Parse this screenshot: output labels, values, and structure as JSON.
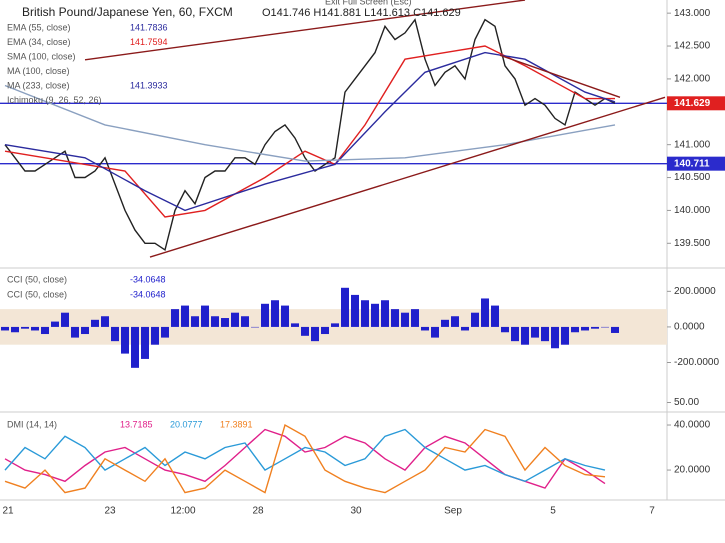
{
  "header": {
    "title": "British Pound/Japanese Yen, 60, FXCM",
    "ohlc": "O141.746 H141.881 L141.613 C141.629",
    "tooltip": "Exit Full Screen (Esc)",
    "indicators": [
      {
        "name": "EMA (55, close)",
        "value": "141.7836",
        "color": "#2b2b9e"
      },
      {
        "name": "EMA (34, close)",
        "value": "141.7594",
        "color": "#e02020"
      },
      {
        "name": "SMA (100, close)",
        "value": "",
        "color": "#999"
      },
      {
        "name": "MA (100, close)",
        "value": "",
        "color": "#999"
      },
      {
        "name": "MA (233, close)",
        "value": "141.3933",
        "color": "#2b2b9e"
      },
      {
        "name": "Ichimoku (9, 26, 52, 26)",
        "value": "",
        "color": "#999"
      }
    ]
  },
  "x_labels": [
    "21",
    "23",
    "12:00",
    "28",
    "30",
    "Sep",
    "5",
    "7"
  ],
  "chart_data": [
    {
      "type": "line",
      "xlim": [
        -0.5,
        66.2
      ],
      "ylim": [
        139.17,
        143.2
      ],
      "yticks": [
        {
          "value": 143.0,
          "label": "143.000"
        },
        {
          "value": 142.5,
          "label": "142.500"
        },
        {
          "value": 142.0,
          "label": "142.000"
        },
        {
          "value": 141.0,
          "label": "141.000"
        },
        {
          "value": 140.5,
          "label": "140.500"
        },
        {
          "value": 140.0,
          "label": "140.000"
        },
        {
          "value": 139.5,
          "label": "139.500"
        }
      ],
      "levels": [
        {
          "value": 141.629,
          "label": "141.629",
          "color": "#e02020"
        },
        {
          "value": 140.711,
          "label": "140.711",
          "color": "#2b2bcc"
        }
      ],
      "series": [
        {
          "color": "#222",
          "x": [
            0,
            1,
            2,
            3,
            4,
            5,
            6,
            7,
            8,
            9,
            10,
            11,
            12,
            13,
            14,
            15,
            16,
            17,
            18,
            19,
            20,
            21,
            22,
            23,
            24,
            25,
            26,
            27,
            28,
            29,
            30,
            31,
            32,
            33,
            34,
            35,
            36,
            37,
            38,
            39,
            40,
            41,
            42,
            43,
            44,
            45,
            46,
            47,
            48,
            49,
            50,
            51,
            52,
            53,
            54,
            55,
            56,
            57,
            58,
            59,
            60,
            61
          ],
          "values": [
            141.0,
            140.8,
            140.6,
            140.6,
            140.7,
            140.8,
            140.9,
            140.5,
            140.5,
            140.6,
            140.8,
            140.4,
            140.0,
            139.7,
            139.5,
            139.5,
            139.4,
            140.0,
            140.3,
            140.1,
            140.5,
            140.6,
            140.6,
            140.8,
            140.8,
            140.7,
            141.0,
            141.2,
            141.3,
            141.1,
            140.8,
            140.6,
            140.7,
            140.8,
            141.8,
            142.0,
            142.2,
            142.4,
            142.8,
            142.6,
            142.7,
            142.9,
            142.3,
            141.9,
            142.1,
            142.2,
            142.0,
            142.6,
            142.9,
            142.8,
            142.2,
            142.0,
            141.6,
            141.7,
            141.6,
            141.4,
            141.3,
            141.8,
            141.7,
            141.6,
            141.7,
            141.63
          ]
        },
        {
          "color": "#e02020",
          "x": [
            0,
            8,
            12,
            16,
            20,
            26,
            30,
            33,
            36,
            40,
            44,
            48,
            52,
            58,
            61
          ],
          "values": [
            140.9,
            140.7,
            140.6,
            139.9,
            140.0,
            140.5,
            140.9,
            140.7,
            141.3,
            142.3,
            142.4,
            142.5,
            142.2,
            141.7,
            141.7
          ]
        },
        {
          "color": "#2b2b9e",
          "x": [
            0,
            8,
            14,
            18,
            26,
            33,
            38,
            42,
            48,
            52,
            58,
            61
          ],
          "values": [
            141.0,
            140.8,
            140.3,
            140.0,
            140.4,
            140.7,
            141.5,
            142.1,
            142.4,
            142.3,
            141.8,
            141.65
          ]
        },
        {
          "color": "#8aa0c0",
          "x": [
            0,
            10,
            20,
            30,
            40,
            50,
            61
          ],
          "values": [
            141.9,
            141.3,
            141.0,
            140.75,
            140.8,
            141.0,
            141.3
          ]
        },
        {
          "color": "#8b1a1a",
          "x": [
            8,
            52
          ],
          "values": [
            142.29,
            143.2
          ]
        },
        {
          "color": "#8b1a1a",
          "x": [
            14.5,
            66
          ],
          "values": [
            139.29,
            141.72
          ]
        },
        {
          "color": "#8b1a1a",
          "x": [
            49.5,
            61.5
          ],
          "values": [
            142.36,
            141.72
          ]
        }
      ]
    },
    {
      "type": "bar",
      "xlim": [
        -0.5,
        66.2
      ],
      "ylim": [
        -394,
        320
      ],
      "color": "#2020cc",
      "legend": [
        {
          "name": "CCI (50, close)",
          "value": "-34.0648"
        },
        {
          "name": "CCI (50, close)",
          "value": "-34.0648"
        }
      ],
      "yticks": [
        {
          "value": 200,
          "label": "200.0000"
        },
        {
          "value": 0,
          "label": "0.0000"
        },
        {
          "value": -200,
          "label": "-200.0000"
        }
      ],
      "band": [
        -100,
        100
      ],
      "values": [
        -20,
        -30,
        -10,
        -20,
        -40,
        30,
        80,
        -60,
        -40,
        40,
        60,
        -80,
        -150,
        -230,
        -180,
        -100,
        -60,
        100,
        120,
        60,
        120,
        60,
        50,
        80,
        60,
        0,
        130,
        150,
        120,
        20,
        -50,
        -80,
        -40,
        20,
        220,
        180,
        150,
        130,
        150,
        100,
        80,
        100,
        -20,
        -60,
        40,
        60,
        -20,
        80,
        160,
        120,
        -30,
        -80,
        -100,
        -60,
        -80,
        -120,
        -100,
        -30,
        -20,
        -10,
        0,
        -34
      ]
    },
    {
      "type": "line",
      "xlim": [
        -0.5,
        66.2
      ],
      "ylim": [
        6.7,
        52
      ],
      "title": "DMI (14, 14)",
      "yticks": [
        {
          "value": 50,
          "label": "50.00"
        },
        {
          "value": 40,
          "label": "40.0000"
        },
        {
          "value": 20,
          "label": "20.0000"
        }
      ],
      "series": [
        {
          "name": "13.7185",
          "color": "#e0208a",
          "x": [
            0,
            2,
            4,
            6,
            8,
            10,
            12,
            14,
            16,
            18,
            20,
            22,
            24,
            26,
            28,
            30,
            32,
            34,
            36,
            38,
            40,
            42,
            44,
            46,
            48,
            50,
            52,
            54,
            56,
            58,
            60
          ],
          "values": [
            25,
            20,
            18,
            15,
            22,
            28,
            30,
            25,
            20,
            18,
            15,
            22,
            30,
            38,
            35,
            28,
            30,
            35,
            32,
            25,
            20,
            30,
            35,
            32,
            25,
            18,
            15,
            12,
            25,
            20,
            14
          ]
        },
        {
          "name": "20.0777",
          "color": "#2a9ad8",
          "x": [
            0,
            2,
            4,
            6,
            8,
            10,
            12,
            14,
            16,
            18,
            20,
            22,
            24,
            26,
            28,
            30,
            32,
            34,
            36,
            38,
            40,
            42,
            44,
            46,
            48,
            50,
            52,
            54,
            56,
            58,
            60
          ],
          "values": [
            20,
            30,
            25,
            35,
            30,
            20,
            25,
            30,
            22,
            28,
            25,
            30,
            32,
            20,
            25,
            30,
            28,
            22,
            25,
            35,
            38,
            30,
            25,
            20,
            22,
            18,
            15,
            20,
            25,
            22,
            20
          ]
        },
        {
          "name": "17.3891",
          "color": "#f08020",
          "x": [
            0,
            2,
            4,
            6,
            8,
            10,
            12,
            14,
            16,
            18,
            20,
            22,
            24,
            26,
            28,
            30,
            32,
            34,
            36,
            38,
            40,
            42,
            44,
            46,
            48,
            50,
            52,
            54,
            56,
            58,
            60
          ],
          "values": [
            15,
            12,
            20,
            10,
            12,
            25,
            20,
            15,
            25,
            10,
            12,
            20,
            15,
            10,
            40,
            35,
            20,
            15,
            12,
            10,
            15,
            20,
            30,
            28,
            38,
            35,
            20,
            30,
            22,
            18,
            17
          ]
        }
      ]
    }
  ]
}
